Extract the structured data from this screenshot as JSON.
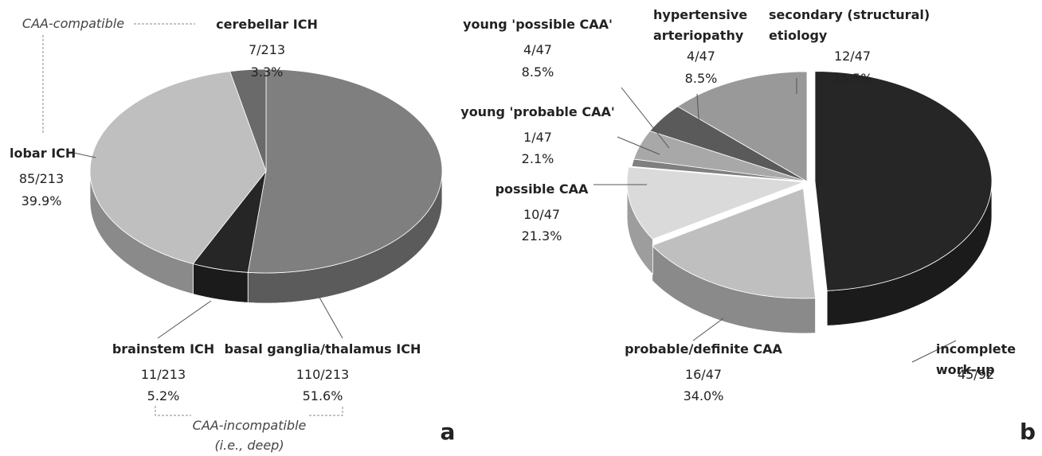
{
  "chart_data": [
    {
      "type": "pie",
      "panel": "a",
      "categories": [
        "basal ganglia/thalamus ICH",
        "brainstem ICH",
        "lobar ICH",
        "cerebellar ICH"
      ],
      "values": [
        110,
        11,
        85,
        7
      ],
      "value_labels": [
        "110/213",
        "11/213",
        "85/213",
        "7/213"
      ],
      "percent_labels": [
        "51.6%",
        "5.2%",
        "39.9%",
        "3.3%"
      ],
      "colors": [
        "#7f7f7f",
        "#262626",
        "#bfbfbf",
        "#6a6a6a"
      ],
      "annotations": [
        "CAA-compatible",
        "CAA-incompatible",
        "(i.e., deep)"
      ]
    },
    {
      "type": "pie",
      "panel": "b",
      "categories": [
        "incomplete work-up",
        "probable/definite CAA",
        "possible CAA",
        "young 'probable CAA'",
        "young 'possible CAA'",
        "hypertensive\narteriopathy",
        "secondary (structural)\netiology"
      ],
      "values": [
        45,
        16,
        10,
        1,
        4,
        4,
        12
      ],
      "value_labels": [
        "45/92",
        "16/47",
        "10/47",
        "1/47",
        "4/47",
        "4/47",
        "12/47"
      ],
      "percent_labels": [
        null,
        "34.0%",
        "21.3%",
        "2.1%",
        "8.5%",
        "8.5%",
        "25.5%"
      ],
      "colors": [
        "#262626",
        "#bfbfbf",
        "#dadada",
        "#7f7f7f",
        "#a8a8a8",
        "#5a5a5a",
        "#999999"
      ]
    }
  ]
}
